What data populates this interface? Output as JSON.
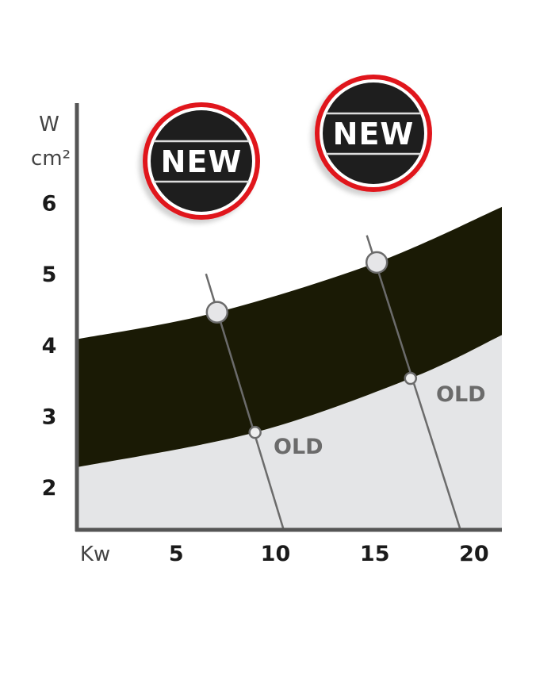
{
  "chart_data": {
    "type": "area",
    "xlabel": "Kw",
    "ylabel_line1": "W",
    "ylabel_line2": "cm²",
    "xlim": [
      0,
      21.4
    ],
    "ylim": [
      1.4,
      7.4
    ],
    "x_ticks": [
      "5",
      "10",
      "15",
      "20"
    ],
    "x_tick_values": [
      5,
      10,
      15,
      20
    ],
    "y_ticks": [
      "6",
      "5",
      "4",
      "3",
      "2"
    ],
    "y_tick_values": [
      6,
      5,
      4,
      3,
      2
    ],
    "grid": false,
    "new_band": {
      "upper": [
        [
          0,
          4.08
        ],
        [
          7.06,
          4.46
        ],
        [
          15.1,
          5.16
        ],
        [
          21.4,
          5.94
        ]
      ],
      "lower": [
        [
          0,
          2.28
        ],
        [
          8.97,
          2.77
        ],
        [
          16.8,
          3.53
        ],
        [
          21.4,
          4.14
        ]
      ],
      "color": "#1a1a05"
    },
    "old_region": {
      "color": "#e4e5e7"
    },
    "comparison_lines": [
      {
        "start": [
          6.5,
          5.0
        ],
        "end": [
          10.4,
          1.41
        ],
        "new_point": [
          7.06,
          4.46
        ],
        "old_point": [
          8.97,
          2.77
        ],
        "old_label": "OLD"
      },
      {
        "start": [
          14.6,
          5.54
        ],
        "end": [
          19.3,
          1.41
        ],
        "new_point": [
          15.1,
          5.16
        ],
        "old_point": [
          16.8,
          3.53
        ],
        "old_label": "OLD"
      }
    ],
    "badges": [
      {
        "label": "NEW",
        "ring_color": "#e0141e",
        "fill_color": "#1e1e1e"
      },
      {
        "label": "NEW",
        "ring_color": "#e0141e",
        "fill_color": "#1e1e1e"
      }
    ]
  }
}
